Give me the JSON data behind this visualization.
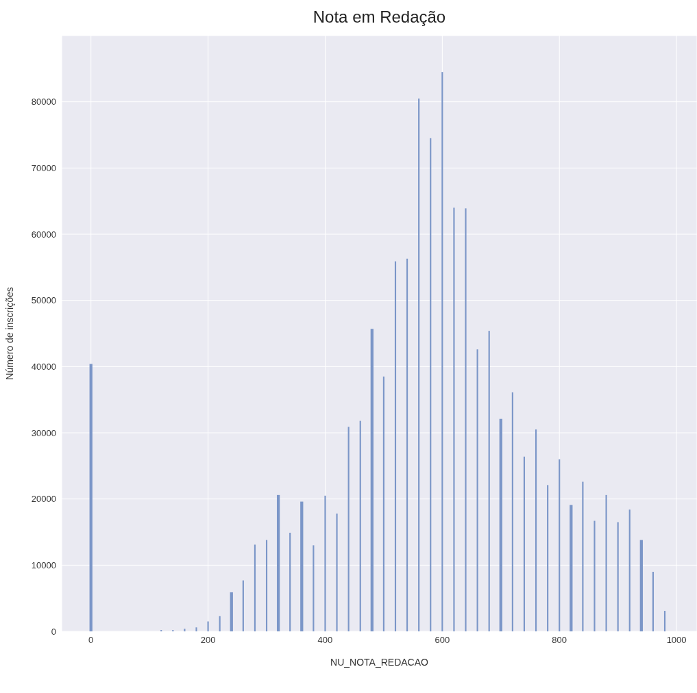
{
  "chart_data": {
    "type": "histogram",
    "title": "Nota em Redação",
    "xlabel": "NU_NOTA_REDACAO",
    "ylabel": "Número de inscrições",
    "color": "#7b96c8",
    "bins": [
      -2.5,
      2.5,
      118.75,
      121.25,
      138.75,
      141.25,
      158.75,
      161.25,
      178.75,
      181.25,
      198.75,
      201.25,
      218.75,
      221.25,
      237.5,
      242.5,
      258.75,
      261.25,
      278.75,
      281.25,
      298.75,
      301.25,
      317.5,
      322.5,
      338.75,
      341.25,
      357.5,
      362.5,
      378.75,
      381.25,
      398.75,
      401.25,
      418.75,
      421.25,
      438.75,
      441.25,
      458.75,
      461.25,
      477.5,
      482.5,
      498.75,
      501.25,
      518.75,
      521.25,
      538.75,
      541.25,
      558.75,
      561.25,
      578.75,
      581.25,
      598.75,
      601.25,
      618.75,
      621.25,
      638.75,
      641.25,
      658.75,
      661.25,
      678.75,
      681.25,
      697.5,
      702.5,
      718.75,
      721.25,
      738.75,
      741.25,
      758.75,
      761.25,
      778.75,
      781.25,
      798.75,
      801.25,
      817.5,
      822.5,
      838.75,
      841.25,
      858.75,
      861.25,
      878.75,
      881.25,
      898.75,
      901.25,
      918.75,
      921.25,
      937.5,
      942.5,
      958.75,
      961.25,
      978.75,
      981.25
    ],
    "values": [
      40400,
      0,
      200,
      0,
      200,
      0,
      400,
      0,
      600,
      0,
      1500,
      0,
      2300,
      0,
      5900,
      0,
      7700,
      0,
      13100,
      0,
      13800,
      0,
      20600,
      0,
      14900,
      0,
      19600,
      0,
      13000,
      0,
      20500,
      0,
      17800,
      0,
      30900,
      0,
      31800,
      0,
      45700,
      0,
      38500,
      0,
      55900,
      0,
      56300,
      0,
      80500,
      0,
      74500,
      0,
      84500,
      0,
      64000,
      0,
      63900,
      0,
      42600,
      0,
      45400,
      0,
      32100,
      0,
      36100,
      0,
      26400,
      0,
      30500,
      0,
      22100,
      0,
      26000,
      0,
      19100,
      0,
      22600,
      0,
      16700,
      0,
      20600,
      0,
      16500,
      0,
      18400,
      0,
      13800,
      0,
      9000,
      0,
      3100
    ],
    "xlim": [
      -50,
      1035
    ],
    "xticks": [
      0,
      200,
      400,
      600,
      800,
      1000
    ],
    "ylim": [
      0,
      90000
    ],
    "yticks": [
      0,
      10000,
      20000,
      30000,
      40000,
      50000,
      60000,
      70000,
      80000
    ],
    "grid": true
  }
}
